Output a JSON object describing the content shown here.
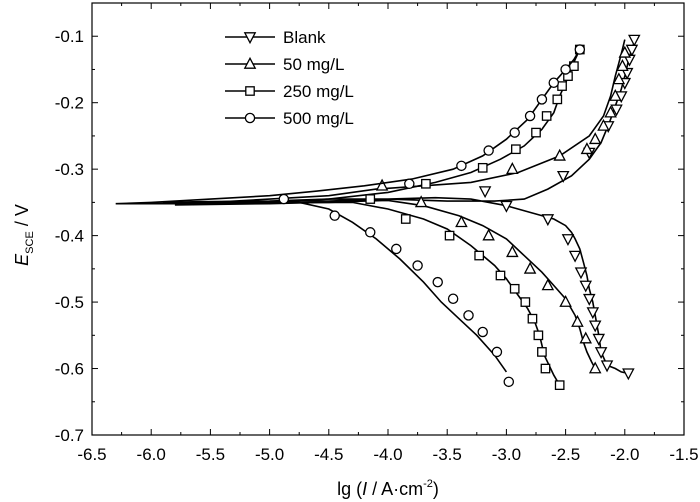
{
  "chart_data": {
    "type": "line",
    "title": "",
    "xlabel": {
      "prefix": "lg (",
      "italic": "I",
      "suffix": " / A·cm",
      "sup": "-2",
      "close": ")"
    },
    "ylabel": {
      "italic": "E",
      "sub": "SCE",
      "suffix": " / V"
    },
    "xlim": [
      -6.5,
      -1.5
    ],
    "ylim": [
      -0.7,
      -0.05
    ],
    "xticks": [
      -6.5,
      -6.0,
      -5.5,
      -5.0,
      -4.5,
      -4.0,
      -3.5,
      -3.0,
      -2.5,
      -2.0,
      -1.5
    ],
    "yticks": [
      -0.7,
      -0.6,
      -0.5,
      -0.4,
      -0.3,
      -0.2,
      -0.1
    ],
    "xtick_labels": [
      "-6.5",
      "-6.0",
      "-5.5",
      "-5.0",
      "-4.5",
      "-4.0",
      "-3.5",
      "-3.0",
      "-2.5",
      "-2.0",
      "-1.5"
    ],
    "ytick_labels": [
      "-0.7",
      "-0.6",
      "-0.5",
      "-0.4",
      "-0.3",
      "-0.2",
      "-0.1"
    ],
    "grid": false,
    "legend_position": "top-left",
    "series": [
      {
        "name": "Blank",
        "marker": "triangle-down",
        "x": [
          -1.92,
          -1.93,
          -1.96,
          -1.98,
          -2.0,
          -2.03,
          -2.07,
          -2.13,
          -2.2,
          -2.3,
          -2.45,
          -2.65,
          -2.85,
          -3.1,
          -3.5,
          -4.0,
          -4.5,
          -5.0,
          -5.6,
          -5.9,
          -5.5,
          -5.0,
          -4.5,
          -4.0,
          -3.6,
          -3.3,
          -3.0,
          -2.8,
          -2.6,
          -2.5,
          -2.45,
          -2.42,
          -2.38,
          -2.35,
          -2.32,
          -2.3,
          -2.27,
          -2.25,
          -2.22,
          -2.2,
          -2.15,
          -2.08,
          -2.03,
          -1.98
        ],
        "y": [
          -0.105,
          -0.115,
          -0.13,
          -0.145,
          -0.16,
          -0.18,
          -0.2,
          -0.23,
          -0.26,
          -0.285,
          -0.31,
          -0.33,
          -0.345,
          -0.348,
          -0.348,
          -0.345,
          -0.345,
          -0.348,
          -0.349,
          -0.35,
          -0.349,
          -0.348,
          -0.348,
          -0.345,
          -0.343,
          -0.345,
          -0.355,
          -0.365,
          -0.375,
          -0.385,
          -0.395,
          -0.405,
          -0.42,
          -0.44,
          -0.46,
          -0.48,
          -0.5,
          -0.52,
          -0.55,
          -0.575,
          -0.595,
          -0.6,
          -0.605,
          -0.607
        ],
        "marker_x": [
          -1.92,
          -1.94,
          -1.96,
          -1.98,
          -2.0,
          -2.03,
          -2.07,
          -2.14,
          -2.3,
          -2.52,
          -3.18,
          -3.0,
          -2.65,
          -2.48,
          -2.42,
          -2.37,
          -2.33,
          -2.3,
          -2.27,
          -2.25,
          -2.22,
          -2.2,
          -2.15,
          -1.97
        ],
        "marker_y": [
          -0.105,
          -0.12,
          -0.135,
          -0.155,
          -0.17,
          -0.19,
          -0.21,
          -0.235,
          -0.275,
          -0.31,
          -0.333,
          -0.355,
          -0.375,
          -0.405,
          -0.43,
          -0.455,
          -0.475,
          -0.495,
          -0.515,
          -0.535,
          -0.555,
          -0.575,
          -0.595,
          -0.607
        ]
      },
      {
        "name": "50 mg/L",
        "marker": "triangle-up",
        "x": [
          -2.0,
          -2.02,
          -2.05,
          -2.08,
          -2.12,
          -2.18,
          -2.3,
          -2.55,
          -2.9,
          -3.3,
          -3.7,
          -4.1,
          -4.5,
          -5.0,
          -5.5,
          -6.0,
          -5.5,
          -5.0,
          -4.5,
          -4.2,
          -4.0,
          -3.7,
          -3.4,
          -3.2,
          -3.0,
          -2.85,
          -2.7,
          -2.6,
          -2.5,
          -2.42,
          -2.38,
          -2.35,
          -2.32,
          -2.28,
          -2.25
        ],
        "y": [
          -0.105,
          -0.12,
          -0.14,
          -0.16,
          -0.19,
          -0.22,
          -0.25,
          -0.28,
          -0.305,
          -0.32,
          -0.325,
          -0.33,
          -0.34,
          -0.345,
          -0.35,
          -0.352,
          -0.352,
          -0.351,
          -0.35,
          -0.348,
          -0.347,
          -0.355,
          -0.37,
          -0.385,
          -0.405,
          -0.43,
          -0.455,
          -0.475,
          -0.495,
          -0.52,
          -0.54,
          -0.56,
          -0.575,
          -0.59,
          -0.6
        ],
        "marker_x": [
          -2.0,
          -2.02,
          -2.05,
          -2.08,
          -2.12,
          -2.18,
          -2.25,
          -2.32,
          -2.55,
          -2.95,
          -4.05,
          -3.72,
          -3.38,
          -3.15,
          -2.95,
          -2.8,
          -2.65,
          -2.5,
          -2.4,
          -2.33,
          -2.25
        ],
        "marker_y": [
          -0.125,
          -0.145,
          -0.165,
          -0.19,
          -0.215,
          -0.235,
          -0.255,
          -0.27,
          -0.28,
          -0.3,
          -0.325,
          -0.35,
          -0.38,
          -0.4,
          -0.425,
          -0.45,
          -0.475,
          -0.5,
          -0.53,
          -0.555,
          -0.6
        ]
      },
      {
        "name": "250 mg/L",
        "marker": "square",
        "x": [
          -2.38,
          -2.42,
          -2.45,
          -2.5,
          -2.55,
          -2.6,
          -2.7,
          -2.85,
          -3.05,
          -3.3,
          -3.6,
          -4.0,
          -4.5,
          -5.0,
          -5.6,
          -5.8,
          -5.5,
          -5.0,
          -4.6,
          -4.3,
          -4.0,
          -3.7,
          -3.5,
          -3.3,
          -3.1,
          -3.0,
          -2.9,
          -2.82,
          -2.76,
          -2.72,
          -2.68,
          -2.6,
          -2.55
        ],
        "y": [
          -0.12,
          -0.135,
          -0.15,
          -0.17,
          -0.19,
          -0.215,
          -0.24,
          -0.265,
          -0.285,
          -0.305,
          -0.32,
          -0.335,
          -0.345,
          -0.35,
          -0.352,
          -0.354,
          -0.353,
          -0.352,
          -0.35,
          -0.35,
          -0.36,
          -0.375,
          -0.39,
          -0.415,
          -0.445,
          -0.465,
          -0.49,
          -0.51,
          -0.53,
          -0.55,
          -0.58,
          -0.61,
          -0.625
        ],
        "marker_x": [
          -2.38,
          -2.43,
          -2.48,
          -2.53,
          -2.57,
          -2.66,
          -2.75,
          -2.92,
          -3.2,
          -3.68,
          -4.15,
          -3.85,
          -3.48,
          -3.23,
          -3.05,
          -2.93,
          -2.84,
          -2.78,
          -2.73,
          -2.7,
          -2.67,
          -2.55
        ],
        "marker_y": [
          -0.12,
          -0.145,
          -0.16,
          -0.175,
          -0.195,
          -0.22,
          -0.245,
          -0.27,
          -0.298,
          -0.322,
          -0.345,
          -0.375,
          -0.4,
          -0.43,
          -0.46,
          -0.48,
          -0.5,
          -0.525,
          -0.55,
          -0.575,
          -0.6,
          -0.625
        ]
      },
      {
        "name": "500 mg/L",
        "marker": "circle",
        "x": [
          -2.38,
          -2.43,
          -2.5,
          -2.6,
          -2.7,
          -2.82,
          -3.0,
          -3.2,
          -3.45,
          -3.8,
          -4.2,
          -4.6,
          -5.0,
          -5.5,
          -6.0,
          -6.3,
          -5.8,
          -5.2,
          -4.8,
          -4.5,
          -4.3,
          -4.1,
          -3.9,
          -3.7,
          -3.55,
          -3.4,
          -3.25,
          -3.1,
          -3.0
        ],
        "y": [
          -0.12,
          -0.135,
          -0.15,
          -0.17,
          -0.195,
          -0.225,
          -0.255,
          -0.28,
          -0.3,
          -0.315,
          -0.325,
          -0.333,
          -0.34,
          -0.345,
          -0.35,
          -0.352,
          -0.352,
          -0.35,
          -0.348,
          -0.36,
          -0.38,
          -0.405,
          -0.435,
          -0.47,
          -0.5,
          -0.525,
          -0.55,
          -0.58,
          -0.605
        ],
        "marker_x": [
          -2.38,
          -2.5,
          -2.6,
          -2.7,
          -2.8,
          -2.93,
          -3.15,
          -3.38,
          -3.82,
          -4.88,
          -4.45,
          -4.15,
          -3.93,
          -3.75,
          -3.58,
          -3.45,
          -3.32,
          -3.2,
          -3.08,
          -2.98
        ],
        "marker_y": [
          -0.12,
          -0.15,
          -0.17,
          -0.195,
          -0.22,
          -0.245,
          -0.272,
          -0.295,
          -0.322,
          -0.345,
          -0.37,
          -0.395,
          -0.42,
          -0.445,
          -0.47,
          -0.495,
          -0.52,
          -0.545,
          -0.575,
          -0.62
        ]
      }
    ]
  }
}
